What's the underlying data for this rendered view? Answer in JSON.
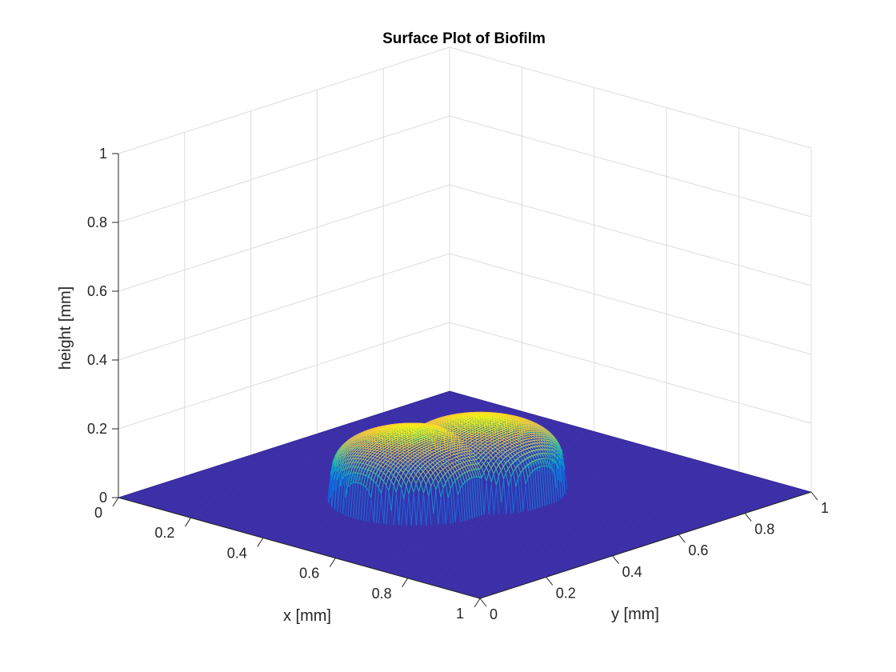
{
  "chart_data": {
    "type": "surface3d",
    "title": "Surface Plot of Biofilm",
    "xlabel": "x [mm]",
    "ylabel": "y [mm]",
    "zlabel": "height [mm]",
    "xlim": [
      0,
      1
    ],
    "ylim": [
      0,
      1
    ],
    "zlim": [
      0,
      1
    ],
    "x_ticks": [
      "0",
      "0.2",
      "0.4",
      "0.6",
      "0.8",
      "1"
    ],
    "y_ticks": [
      "0",
      "0.2",
      "0.4",
      "0.6",
      "0.8",
      "1"
    ],
    "z_ticks": [
      "0",
      "0.2",
      "0.4",
      "0.6",
      "0.8",
      "1"
    ],
    "grid": true,
    "colormap": "parula",
    "base_color": "#3b2ea4",
    "surface": {
      "base_height": 0,
      "colony_peak_height": 0.2,
      "lobes": [
        {
          "cx": 0.45,
          "cy": 0.4,
          "radius": 0.17
        },
        {
          "cx": 0.5,
          "cy": 0.55,
          "radius": 0.17
        }
      ]
    }
  }
}
